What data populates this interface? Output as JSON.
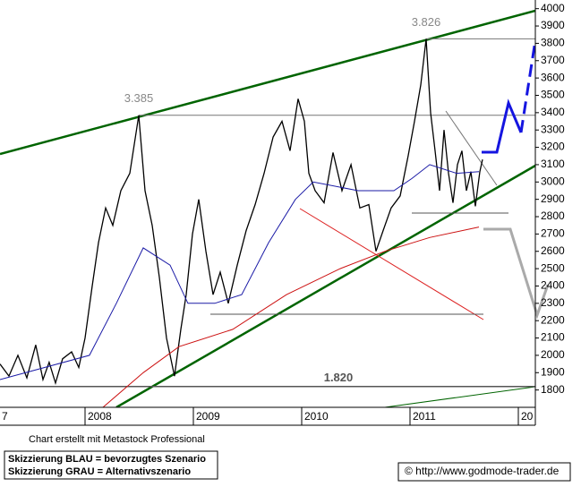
{
  "chart_data": {
    "type": "line",
    "ylim": [
      1700,
      4050
    ],
    "yticks": [
      1800,
      1900,
      2000,
      2100,
      2200,
      2300,
      2400,
      2500,
      2600,
      2700,
      2800,
      2900,
      3000,
      3100,
      3200,
      3300,
      3400,
      3500,
      3600,
      3700,
      3800,
      3900,
      4000
    ],
    "xlim": [
      2007.215,
      2012.157
    ],
    "xticks": [
      {
        "value": 2007,
        "label": "7"
      },
      2008,
      2009,
      2010,
      2011,
      {
        "value": 2012,
        "label": "20"
      }
    ],
    "series": [
      {
        "color": "#000000",
        "x": [
          2007.215,
          2007.298,
          2007.38,
          2007.463,
          2007.545,
          2007.612,
          2007.669,
          2007.727,
          2007.793,
          2007.876,
          2007.942,
          2008.0,
          2008.066,
          2008.124,
          2008.19,
          2008.256,
          2008.331,
          2008.413,
          2008.496,
          2008.554,
          2008.62,
          2008.686,
          2008.752,
          2008.826,
          2008.884,
          2008.934,
          2008.992,
          2009.05,
          2009.116,
          2009.182,
          2009.248,
          2009.322,
          2009.405,
          2009.488,
          2009.57,
          2009.653,
          2009.736,
          2009.818,
          2009.893,
          2009.967,
          2010.025,
          2010.066,
          2010.124,
          2010.207,
          2010.289,
          2010.372,
          2010.455,
          2010.537,
          2010.62,
          2010.686,
          2010.752,
          2010.826,
          2010.909,
          2010.983,
          2011.041,
          2011.099,
          2011.149,
          2011.19,
          2011.231,
          2011.273,
          2011.314,
          2011.355,
          2011.397,
          2011.438,
          2011.479,
          2011.521,
          2011.562,
          2011.603,
          2011.645,
          2011.669
        ],
        "values": [
          1950,
          1880,
          2000,
          1870,
          2060,
          1860,
          1960,
          1840,
          1980,
          2020,
          1930,
          2100,
          2400,
          2650,
          2850,
          2750,
          2950,
          3050,
          3385,
          2950,
          2750,
          2450,
          2100,
          1880,
          2150,
          2350,
          2700,
          2900,
          2600,
          2350,
          2480,
          2300,
          2520,
          2720,
          2870,
          3050,
          3260,
          3350,
          3180,
          3480,
          3350,
          3050,
          2950,
          2880,
          3170,
          2950,
          3100,
          2850,
          2870,
          2600,
          2720,
          2850,
          2920,
          3150,
          3350,
          3560,
          3826,
          3400,
          3180,
          2950,
          3300,
          3050,
          2880,
          3100,
          3180,
          2950,
          3060,
          2860,
          3060,
          3130
        ]
      },
      {
        "color": "#1a1aa6",
        "x": [
          2007.215,
          2008.041,
          2008.289,
          2008.537,
          2008.785,
          2008.95,
          2009.198,
          2009.446,
          2009.694,
          2009.942,
          2010.107,
          2010.521,
          2010.851,
          2011.017,
          2011.182,
          2011.43,
          2011.636
        ],
        "values": [
          1860,
          2000,
          2300,
          2620,
          2520,
          2300,
          2300,
          2350,
          2650,
          2900,
          3000,
          2950,
          2950,
          3020,
          3100,
          3050,
          3060
        ]
      },
      {
        "color": "#cc1111",
        "x": [
          2008.165,
          2008.537,
          2008.868,
          2009.364,
          2009.86,
          2010.355,
          2010.769,
          2011.182,
          2011.636
        ],
        "values": [
          1700,
          1900,
          2050,
          2150,
          2350,
          2500,
          2600,
          2680,
          2740
        ]
      }
    ],
    "levels": [
      {
        "value": 3826,
        "label": "3.826"
      },
      {
        "value": 3385,
        "label": "3.385"
      },
      {
        "value": 1820,
        "label": "1.820"
      }
    ],
    "credit": "Chart erstellt mit Metastock Professional",
    "notes": [
      "Skizzierung BLAU = bevorzugtes Szenario",
      "Skizzierung GRAU = Alternativszenario"
    ],
    "source": "© http://www.godmode-trader.de"
  }
}
